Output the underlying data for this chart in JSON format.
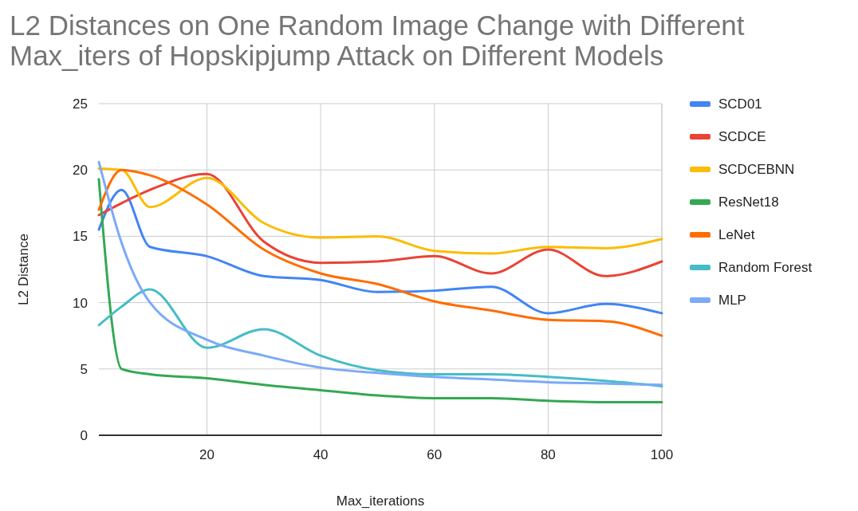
{
  "chart_data": {
    "type": "line",
    "title": "L2 Distances on One Random Image Change with Different Max_iters of Hopskipjump Attack on Different Models",
    "xlabel": "Max_iterations",
    "ylabel": "L2 Distance",
    "x": [
      1,
      5,
      10,
      20,
      30,
      40,
      50,
      60,
      70,
      80,
      90,
      100
    ],
    "xlim": [
      1,
      100
    ],
    "xticks": [
      20,
      40,
      60,
      80,
      100
    ],
    "ylim": [
      0,
      25
    ],
    "yticks": [
      0,
      5,
      10,
      15,
      20,
      25
    ],
    "grid": true,
    "legend": "right",
    "series": [
      {
        "name": "SCD01",
        "color": "#4285f4",
        "values": [
          15.5,
          18.5,
          14.2,
          13.5,
          12,
          11.7,
          10.8,
          10.9,
          11.2,
          9.2,
          9.9,
          9.2
        ]
      },
      {
        "name": "SCDCE",
        "color": "#ea4335",
        "values": [
          16.6,
          17.5,
          18.5,
          19.7,
          14.6,
          13.0,
          13.1,
          13.5,
          12.2,
          14.0,
          12.0,
          13.1
        ]
      },
      {
        "name": "SCDCEBNN",
        "color": "#fbbc04",
        "values": [
          20.1,
          20.0,
          17.2,
          19.4,
          16.0,
          14.9,
          15.0,
          13.9,
          13.7,
          14.2,
          14.1,
          14.8
        ]
      },
      {
        "name": "ResNet18",
        "color": "#34a853",
        "values": [
          19.3,
          5.0,
          4.6,
          4.3,
          3.8,
          3.4,
          3.0,
          2.8,
          2.8,
          2.6,
          2.5,
          2.5
        ]
      },
      {
        "name": "LeNet",
        "color": "#ff6d01",
        "values": [
          17.0,
          20.0,
          19.6,
          17.4,
          14.0,
          12.2,
          11.4,
          10.1,
          9.4,
          8.7,
          8.6,
          7.5
        ]
      },
      {
        "name": "Random Forest",
        "color": "#46bdc6",
        "values": [
          8.3,
          9.7,
          11.0,
          6.6,
          8.0,
          6.0,
          4.9,
          4.6,
          4.6,
          4.4,
          4.1,
          3.7
        ]
      },
      {
        "name": "MLP",
        "color": "#7baaf7",
        "values": [
          20.6,
          14.5,
          10.0,
          7.2,
          6.0,
          5.1,
          4.7,
          4.4,
          4.2,
          4.0,
          3.9,
          3.8
        ]
      }
    ]
  }
}
